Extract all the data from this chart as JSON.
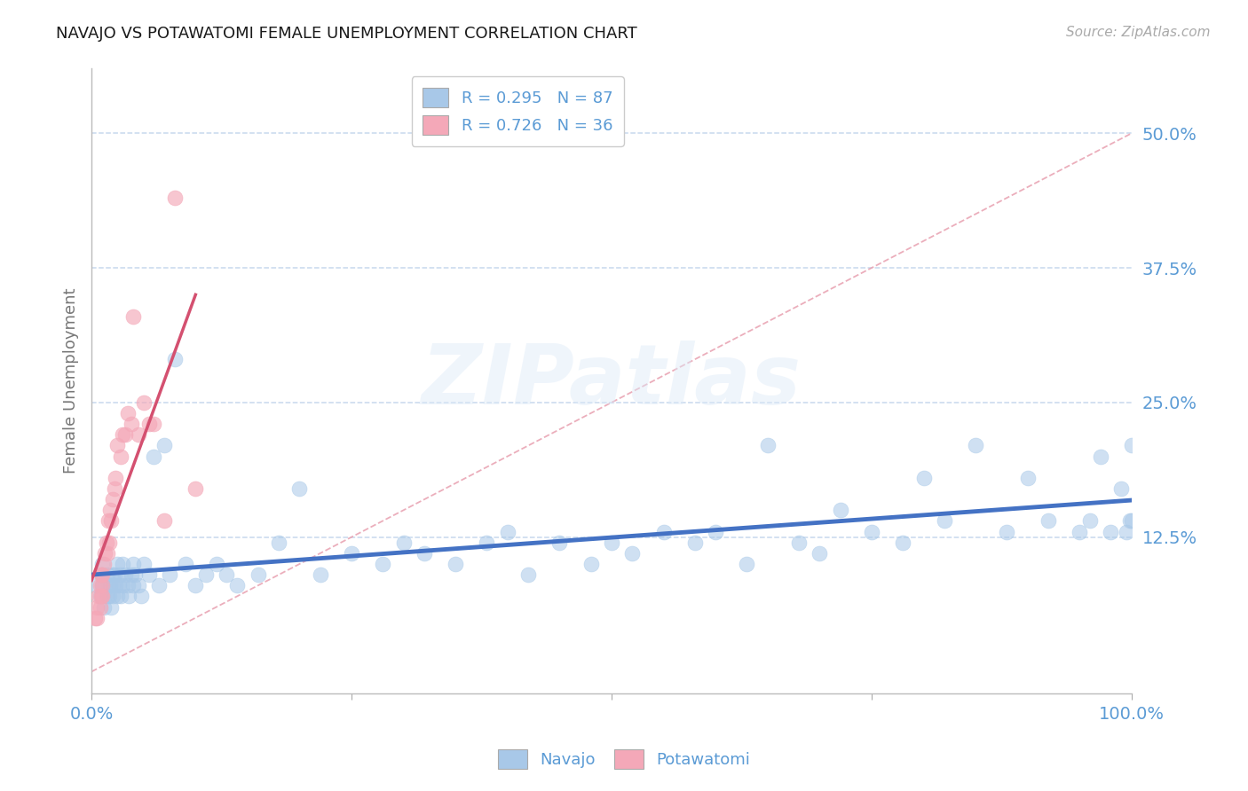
{
  "title": "NAVAJO VS POTAWATOMI FEMALE UNEMPLOYMENT CORRELATION CHART",
  "source_text": "Source: ZipAtlas.com",
  "ylabel": "Female Unemployment",
  "navajo_color": "#a8c8e8",
  "navajo_line_color": "#4472c4",
  "potawatomi_color": "#f4a8b8",
  "potawatomi_line_color": "#d45070",
  "diag_line_color": "#e8a0b0",
  "background_color": "#ffffff",
  "grid_color": "#c8d8ee",
  "title_color": "#1a1a1a",
  "axis_label_color": "#5b9bd5",
  "ytick_labels": [
    "12.5%",
    "25.0%",
    "37.5%",
    "50.0%"
  ],
  "ytick_values": [
    0.125,
    0.25,
    0.375,
    0.5
  ],
  "xlim": [
    0.0,
    1.0
  ],
  "ylim": [
    -0.02,
    0.56
  ],
  "watermark_text": "ZIPatlas",
  "legend_navajo_text": "R = 0.295   N = 87",
  "legend_potawatomi_text": "R = 0.726   N = 36",
  "navajo_x": [
    0.005,
    0.008,
    0.01,
    0.01,
    0.01,
    0.012,
    0.015,
    0.015,
    0.016,
    0.017,
    0.018,
    0.019,
    0.02,
    0.02,
    0.02,
    0.022,
    0.023,
    0.025,
    0.025,
    0.026,
    0.027,
    0.028,
    0.03,
    0.03,
    0.032,
    0.035,
    0.036,
    0.038,
    0.04,
    0.04,
    0.042,
    0.045,
    0.048,
    0.05,
    0.055,
    0.06,
    0.065,
    0.07,
    0.075,
    0.08,
    0.09,
    0.1,
    0.11,
    0.12,
    0.13,
    0.14,
    0.16,
    0.18,
    0.2,
    0.22,
    0.25,
    0.28,
    0.3,
    0.32,
    0.35,
    0.38,
    0.4,
    0.42,
    0.45,
    0.48,
    0.5,
    0.52,
    0.55,
    0.58,
    0.6,
    0.63,
    0.65,
    0.68,
    0.7,
    0.72,
    0.75,
    0.78,
    0.8,
    0.82,
    0.85,
    0.88,
    0.9,
    0.92,
    0.95,
    0.96,
    0.97,
    0.98,
    0.99,
    0.995,
    0.998,
    1.0,
    1.0
  ],
  "navajo_y": [
    0.08,
    0.07,
    0.1,
    0.08,
    0.09,
    0.06,
    0.07,
    0.09,
    0.08,
    0.07,
    0.08,
    0.06,
    0.09,
    0.08,
    0.07,
    0.09,
    0.08,
    0.1,
    0.07,
    0.08,
    0.09,
    0.07,
    0.1,
    0.08,
    0.09,
    0.08,
    0.07,
    0.09,
    0.1,
    0.08,
    0.09,
    0.08,
    0.07,
    0.1,
    0.09,
    0.2,
    0.08,
    0.21,
    0.09,
    0.29,
    0.1,
    0.08,
    0.09,
    0.1,
    0.09,
    0.08,
    0.09,
    0.12,
    0.17,
    0.09,
    0.11,
    0.1,
    0.12,
    0.11,
    0.1,
    0.12,
    0.13,
    0.09,
    0.12,
    0.1,
    0.12,
    0.11,
    0.13,
    0.12,
    0.13,
    0.1,
    0.21,
    0.12,
    0.11,
    0.15,
    0.13,
    0.12,
    0.18,
    0.14,
    0.21,
    0.13,
    0.18,
    0.14,
    0.13,
    0.14,
    0.2,
    0.13,
    0.17,
    0.13,
    0.14,
    0.21,
    0.14
  ],
  "potawatomi_x": [
    0.003,
    0.005,
    0.005,
    0.007,
    0.008,
    0.008,
    0.009,
    0.009,
    0.01,
    0.01,
    0.01,
    0.012,
    0.013,
    0.014,
    0.015,
    0.016,
    0.017,
    0.018,
    0.019,
    0.02,
    0.022,
    0.023,
    0.025,
    0.028,
    0.03,
    0.032,
    0.035,
    0.038,
    0.04,
    0.045,
    0.05,
    0.055,
    0.06,
    0.07,
    0.08,
    0.1
  ],
  "potawatomi_y": [
    0.05,
    0.06,
    0.05,
    0.07,
    0.06,
    0.08,
    0.07,
    0.09,
    0.08,
    0.07,
    0.09,
    0.1,
    0.11,
    0.12,
    0.11,
    0.14,
    0.12,
    0.15,
    0.14,
    0.16,
    0.17,
    0.18,
    0.21,
    0.2,
    0.22,
    0.22,
    0.24,
    0.23,
    0.33,
    0.22,
    0.25,
    0.23,
    0.23,
    0.14,
    0.44,
    0.17
  ]
}
